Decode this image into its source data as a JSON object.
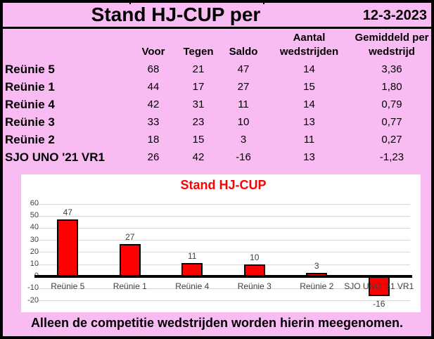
{
  "colors": {
    "page_background": "#f9bcf2",
    "border": "#000000",
    "chart_background": "#ffffff",
    "bar_fill": "#ff0000",
    "bar_border": "#000000",
    "chart_title": "#ff0000",
    "gridline": "#d9d9d9",
    "tick_text": "#404040"
  },
  "header": {
    "title": "Stand HJ-CUP per",
    "date": "12-3-2023"
  },
  "table": {
    "header": {
      "voor": "Voor",
      "tegen": "Tegen",
      "saldo": "Saldo",
      "aantal_line1": "Aantal",
      "aantal_line2": "wedstrijden",
      "gem_line1": "Gemiddeld per",
      "gem_line2": "wedstrijd"
    },
    "rows": [
      {
        "team": "Reünie 5",
        "voor": "68",
        "tegen": "21",
        "saldo": "47",
        "aantal": "14",
        "gem": "3,36"
      },
      {
        "team": "Reünie 1",
        "voor": "44",
        "tegen": "17",
        "saldo": "27",
        "aantal": "15",
        "gem": "1,80"
      },
      {
        "team": "Reünie 4",
        "voor": "42",
        "tegen": "31",
        "saldo": "11",
        "aantal": "14",
        "gem": "0,79"
      },
      {
        "team": "Reünie 3",
        "voor": "33",
        "tegen": "23",
        "saldo": "10",
        "aantal": "13",
        "gem": "0,77"
      },
      {
        "team": "Reünie 2",
        "voor": "18",
        "tegen": "15",
        "saldo": "3",
        "aantal": "11",
        "gem": "0,27"
      },
      {
        "team": "SJO UNO '21 VR1",
        "voor": "26",
        "tegen": "42",
        "saldo": "-16",
        "aantal": "13",
        "gem": "-1,23"
      }
    ]
  },
  "chart_data": {
    "type": "bar",
    "title": "Stand HJ-CUP",
    "categories": [
      "Reünie 5",
      "Reünie 1",
      "Reünie 4",
      "Reünie 3",
      "Reünie 2",
      "SJO UNO '21 VR1"
    ],
    "values": [
      47,
      27,
      11,
      10,
      3,
      -16
    ],
    "labels": [
      "47",
      "27",
      "11",
      "10",
      "3",
      "-16"
    ],
    "xlabel": "",
    "ylabel": "",
    "ylim": [
      -20,
      60
    ],
    "ytick_step": 10,
    "yticks": [
      60,
      50,
      40,
      30,
      20,
      10,
      0,
      -10,
      -20
    ],
    "grid": true,
    "legend": "none",
    "bar_color": "#ff0000",
    "bar_border_color": "#000000",
    "title_color": "#ff0000"
  },
  "footer": {
    "note": "Alleen de competitie wedstrijden worden hierin meegenomen."
  }
}
